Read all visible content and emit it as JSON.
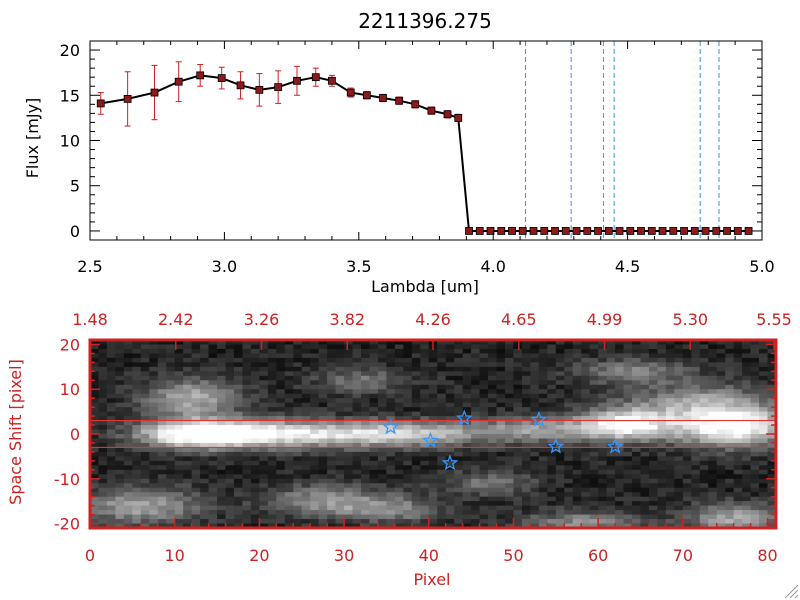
{
  "colors": {
    "axis_top": "#000000",
    "axis_bottom": "#cc2222",
    "errorbar": "#cc2222",
    "marker": "#8b1a1a",
    "vline": "#3399dd",
    "star": "#3399ff",
    "slit": "#dd3333"
  },
  "chart_data": [
    {
      "type": "line",
      "title": "2211396.275",
      "xlabel": "Lambda [um]",
      "ylabel": "Flux [mJy]",
      "xlim": [
        2.5,
        5.0
      ],
      "ylim": [
        -1,
        21
      ],
      "xticks": [
        "2.5",
        "3.0",
        "3.5",
        "4.0",
        "4.5",
        "5.0"
      ],
      "yticks": [
        "0",
        "5",
        "10",
        "15",
        "20"
      ],
      "series": [
        {
          "x": [
            2.54,
            2.64,
            2.74,
            2.83,
            2.91,
            2.99,
            3.06,
            3.13,
            3.2,
            3.27,
            3.34,
            3.4,
            3.47,
            3.53,
            3.59,
            3.65,
            3.71,
            3.77,
            3.83,
            3.87,
            3.91,
            3.95,
            3.99,
            4.03,
            4.07,
            4.11,
            4.15,
            4.19,
            4.23,
            4.27,
            4.31,
            4.35,
            4.39,
            4.43,
            4.47,
            4.51,
            4.55,
            4.59,
            4.63,
            4.67,
            4.71,
            4.75,
            4.79,
            4.83,
            4.87,
            4.91,
            4.95
          ],
          "y": [
            14.1,
            14.6,
            15.3,
            16.5,
            17.2,
            16.9,
            16.1,
            15.6,
            15.9,
            16.6,
            17.0,
            16.6,
            15.3,
            15.0,
            14.7,
            14.4,
            14.0,
            13.3,
            12.9,
            12.5,
            0,
            0,
            0,
            0,
            0,
            0,
            0,
            0,
            0,
            0,
            0,
            0,
            0,
            0,
            0,
            0,
            0,
            0,
            0,
            0,
            0,
            0,
            0,
            0,
            0,
            0,
            0
          ],
          "err": [
            1.2,
            3.0,
            3.0,
            2.2,
            1.2,
            1.2,
            1.5,
            1.8,
            1.8,
            1.6,
            1.0,
            0.6,
            0.5,
            0.4,
            0.4,
            0.4,
            0.4,
            0.4,
            0.4,
            0.4,
            0,
            0,
            0,
            0,
            0,
            0,
            0,
            0,
            0,
            0,
            0,
            0,
            0,
            0,
            0,
            0,
            0,
            0,
            0,
            0,
            0,
            0,
            0,
            0,
            0,
            0,
            0
          ]
        }
      ],
      "vlines": [
        4.12,
        4.29,
        4.41,
        4.45,
        4.77,
        4.84
      ]
    },
    {
      "type": "heatmap",
      "xlabel": "Pixel",
      "ylabel": "Space Shift [pixel]",
      "xlim": [
        0,
        81
      ],
      "ylim": [
        -21,
        21
      ],
      "xticks": [
        "0",
        "10",
        "20",
        "30",
        "40",
        "50",
        "60",
        "70",
        "80"
      ],
      "yticks": [
        "-20",
        "-10",
        "0",
        "10",
        "20"
      ],
      "top_axis_ticks": [
        "1.48",
        "2.42",
        "3.26",
        "3.82",
        "4.26",
        "4.65",
        "4.99",
        "5.30",
        "5.55"
      ],
      "slit_lines_y": [
        3,
        -3
      ],
      "stars": [
        {
          "x": 35.5,
          "y": 1.5
        },
        {
          "x": 40.2,
          "y": -1.5
        },
        {
          "x": 44.2,
          "y": 3.5
        },
        {
          "x": 42.5,
          "y": -6.5
        },
        {
          "x": 53.0,
          "y": 3.2
        },
        {
          "x": 55.0,
          "y": -2.8
        },
        {
          "x": 62.0,
          "y": -2.8
        }
      ]
    }
  ]
}
